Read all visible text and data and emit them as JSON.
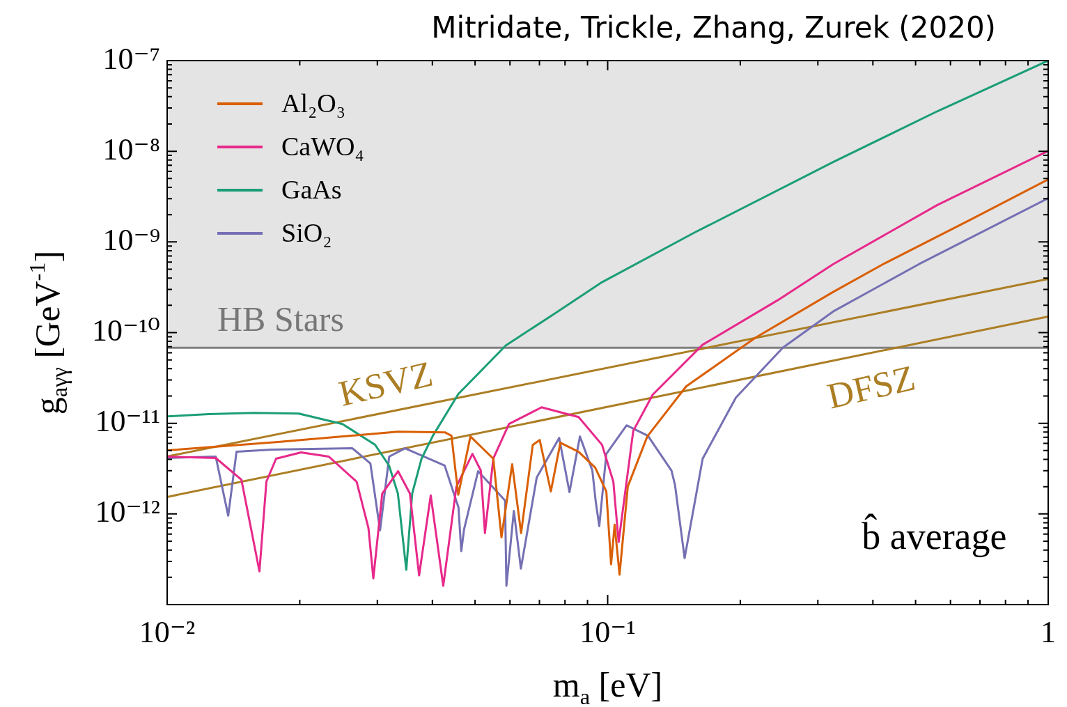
{
  "chart_data": {
    "type": "line",
    "title": "Mitridate, Trickle, Zhang, Zurek (2020)",
    "xlabel": "m$_{a}$ [eV]",
    "ylabel": "g$_{aγγ}$ [GeV$^{-1}$]",
    "log": "xy",
    "legend": "top left",
    "xlim": [
      0.01,
      1
    ],
    "ylim": [
      1e-13,
      1e-07
    ],
    "xticks": [
      {
        "value": 0.01,
        "label": "10⁻²"
      },
      {
        "value": 0.02,
        "label": null
      },
      {
        "value": 0.03,
        "label": null
      },
      {
        "value": 0.04,
        "label": null
      },
      {
        "value": 0.05,
        "label": null
      },
      {
        "value": 0.06,
        "label": null
      },
      {
        "value": 0.07,
        "label": null
      },
      {
        "value": 0.08,
        "label": null
      },
      {
        "value": 0.09,
        "label": null
      },
      {
        "value": 0.1,
        "label": "10⁻¹"
      },
      {
        "value": 0.2,
        "label": null
      },
      {
        "value": 0.3,
        "label": null
      },
      {
        "value": 0.4,
        "label": null
      },
      {
        "value": 0.5,
        "label": null
      },
      {
        "value": 0.6,
        "label": null
      },
      {
        "value": 0.7,
        "label": null
      },
      {
        "value": 0.8,
        "label": null
      },
      {
        "value": 0.9,
        "label": null
      },
      1
    ],
    "yticks": [
      {
        "value": 2e-13,
        "label": null
      },
      {
        "value": 3e-13,
        "label": null
      },
      {
        "value": 4e-13,
        "label": null
      },
      {
        "value": 5e-13,
        "label": null
      },
      {
        "value": 6e-13,
        "label": null
      },
      {
        "value": 7e-13,
        "label": null
      },
      {
        "value": 8e-13,
        "label": null
      },
      {
        "value": 9e-13,
        "label": null
      },
      {
        "value": 1e-12,
        "label": "10⁻¹²"
      },
      {
        "value": 2e-12,
        "label": null
      },
      {
        "value": 3e-12,
        "label": null
      },
      {
        "value": 4e-12,
        "label": null
      },
      {
        "value": 5e-12,
        "label": null
      },
      {
        "value": 6e-12,
        "label": null
      },
      {
        "value": 7e-12,
        "label": null
      },
      {
        "value": 8e-12,
        "label": null
      },
      {
        "value": 9e-12,
        "label": null
      },
      {
        "value": 1e-11,
        "label": "10⁻¹¹"
      },
      {
        "value": 2e-11,
        "label": null
      },
      {
        "value": 3e-11,
        "label": null
      },
      {
        "value": 4e-11,
        "label": null
      },
      {
        "value": 5e-11,
        "label": null
      },
      {
        "value": 6e-11,
        "label": null
      },
      {
        "value": 7e-11,
        "label": null
      },
      {
        "value": 8e-11,
        "label": null
      },
      {
        "value": 9e-11,
        "label": null
      },
      {
        "value": 1e-10,
        "label": "10⁻¹⁰"
      },
      {
        "value": 2e-10,
        "label": null
      },
      {
        "value": 3e-10,
        "label": null
      },
      {
        "value": 4e-10,
        "label": null
      },
      {
        "value": 5e-10,
        "label": null
      },
      {
        "value": 6e-10,
        "label": null
      },
      {
        "value": 7e-10,
        "label": null
      },
      {
        "value": 8e-10,
        "label": null
      },
      {
        "value": 9e-10,
        "label": null
      },
      {
        "value": 1e-09,
        "label": "10⁻⁹"
      },
      {
        "value": 2e-09,
        "label": null
      },
      {
        "value": 3e-09,
        "label": null
      },
      {
        "value": 4e-09,
        "label": null
      },
      {
        "value": 5e-09,
        "label": null
      },
      {
        "value": 6e-09,
        "label": null
      },
      {
        "value": 7e-09,
        "label": null
      },
      {
        "value": 8e-09,
        "label": null
      },
      {
        "value": 9e-09,
        "label": null
      },
      {
        "value": 1e-08,
        "label": "10⁻⁸"
      },
      {
        "value": 2e-08,
        "label": null
      },
      {
        "value": 3e-08,
        "label": null
      },
      {
        "value": 4e-08,
        "label": null
      },
      {
        "value": 5e-08,
        "label": null
      },
      {
        "value": 6e-08,
        "label": null
      },
      {
        "value": 7e-08,
        "label": null
      },
      {
        "value": 8e-08,
        "label": null
      },
      {
        "value": 9e-08,
        "label": null
      },
      {
        "value": 1e-07,
        "label": "10⁻⁷"
      }
    ],
    "bands": [
      {
        "axis": "y",
        "from": 6.8e-11,
        "to": 1e-07,
        "label": "HB Stars",
        "color": "#e4e4e4"
      }
    ],
    "ref_lines": [
      {
        "axis": "y",
        "value": 6.8e-11,
        "color": "#808080"
      }
    ],
    "series": [
      {
        "name": "Al₂O₃",
        "color": "#d95f02",
        "x": [
          0.01,
          0.01786,
          0.0334,
          0.0427,
          0.0442,
          0.0458,
          0.0488,
          0.055,
          0.0574,
          0.0607,
          0.0636,
          0.0676,
          0.0701,
          0.0743,
          0.0781,
          0.0859,
          0.0937,
          0.0993,
          0.1018,
          0.1037,
          0.1064,
          0.1111,
          0.123,
          0.1507,
          0.2163,
          0.325,
          0.422,
          0.671,
          1
        ],
        "values": [
          5.02e-12,
          6.21e-12,
          8.09e-12,
          7.94e-12,
          7.28e-12,
          1.63e-12,
          7.15e-12,
          4.07e-12,
          5.53e-13,
          3.53e-12,
          6.15e-13,
          5.78e-12,
          6.54e-12,
          1.77e-12,
          6.1e-12,
          4.85e-12,
          3.24e-12,
          1.77e-12,
          2.78e-13,
          7.6e-13,
          2.14e-13,
          2.01e-12,
          7.15e-12,
          2.55e-11,
          8.77e-11,
          2.81e-10,
          5.69e-10,
          1.79e-09,
          4.9e-09
        ]
      },
      {
        "name": "CaWO₄",
        "color": "#e7298a",
        "x": [
          0.01,
          0.01289,
          0.01474,
          0.0162,
          0.0168,
          0.01767,
          0.02013,
          0.02328,
          0.02692,
          0.02864,
          0.02938,
          0.03078,
          0.03344,
          0.03557,
          0.03732,
          0.03966,
          0.04234,
          0.04536,
          0.04932,
          0.05152,
          0.05265,
          0.055,
          0.0597,
          0.0708,
          0.0859,
          0.0971,
          0.103,
          0.1059,
          0.1143,
          0.1265,
          0.1643,
          0.243,
          0.325,
          0.56,
          1
        ],
        "values": [
          4.29e-12,
          4.14e-12,
          2.39e-12,
          2.33e-13,
          2.27e-12,
          4.07e-12,
          4.77e-12,
          4.29e-12,
          2.27e-12,
          6.97e-13,
          1.95e-13,
          1.68e-12,
          2.96e-12,
          1.68e-12,
          2.1e-13,
          1.6e-12,
          1.61e-13,
          2.01e-12,
          4.6e-12,
          3.01e-12,
          6.15e-13,
          4.07e-12,
          9.82e-12,
          1.5e-11,
          1.17e-11,
          5.78e-12,
          2.27e-12,
          4.9e-13,
          8.24e-12,
          2.06e-11,
          7.35e-11,
          2.27e-10,
          5.69e-10,
          2.55e-09,
          1.01e-08
        ]
      },
      {
        "name": "GaAs",
        "color": "#1b9e77",
        "x": [
          0.01,
          0.01243,
          0.01574,
          0.0199,
          0.025,
          0.02965,
          0.0319,
          0.0334,
          0.0349,
          0.036,
          0.0378,
          0.0401,
          0.0458,
          0.0587,
          0.0762,
          0.0971,
          0.157,
          0.325,
          0.56,
          1
        ],
        "values": [
          1.19e-11,
          1.26e-11,
          1.3e-11,
          1.28e-11,
          9.8e-12,
          5.8e-12,
          3.41e-12,
          1.68e-12,
          2.42e-13,
          1.68e-12,
          4.07e-12,
          7.28e-12,
          2.1e-11,
          7.2e-11,
          1.65e-10,
          3.6e-10,
          1.26e-09,
          7.6e-09,
          2.76e-08,
          1e-07
        ]
      },
      {
        "name": "SiO₂",
        "color": "#7570b3",
        "x": [
          0.01,
          0.01289,
          0.01376,
          0.01437,
          0.01722,
          0.02633,
          0.02893,
          0.03043,
          0.03192,
          0.03467,
          0.04266,
          0.04585,
          0.04652,
          0.0472,
          0.0508,
          0.05848,
          0.0589,
          0.06124,
          0.06353,
          0.06902,
          0.0776,
          0.0819,
          0.0865,
          0.0923,
          0.094,
          0.0957,
          0.0993,
          0.1104,
          0.1234,
          0.1396,
          0.1422,
          0.1495,
          0.1643,
          0.1955,
          0.25,
          0.325,
          0.509,
          1
        ],
        "values": [
          4.14e-12,
          4.29e-12,
          9.57e-13,
          4.85e-12,
          5.12e-12,
          5.3e-12,
          3.6e-12,
          6.6e-13,
          4.29e-12,
          5.3e-12,
          3.41e-12,
          1.18e-12,
          3.89e-13,
          6.73e-13,
          2.96e-12,
          1.41e-12,
          1.61e-13,
          1.08e-12,
          2.5e-13,
          2.52e-12,
          6.9e-12,
          1.74e-12,
          7.15e-12,
          3.01e-12,
          1.34e-12,
          7.34e-13,
          4.6e-12,
          9.48e-12,
          7.28e-12,
          3.01e-12,
          2.08e-12,
          3.26e-13,
          4.07e-12,
          1.92e-11,
          6.84e-11,
          1.71e-10,
          5.69e-10,
          3.04e-09
        ]
      },
      {
        "color": "#ac7e24",
        "x": [
          0.01,
          1
        ],
        "values": [
          4.3e-12,
          3.9e-10
        ]
      },
      {
        "color": "#ac7e24",
        "x": [
          0.01,
          1
        ],
        "values": [
          1.54e-12,
          1.5e-10
        ]
      }
    ],
    "annotations": [
      "KSVZ",
      "DFSZ",
      "b̂ average"
    ]
  }
}
